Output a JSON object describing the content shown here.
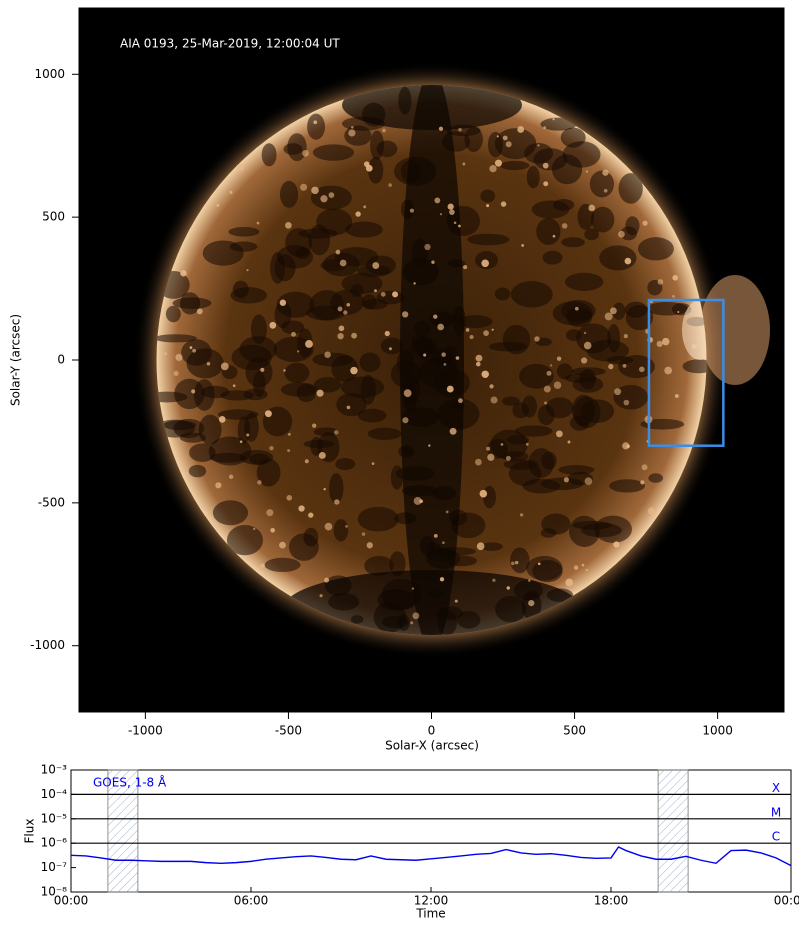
{
  "chart_data": [
    {
      "type": "image",
      "annotation": "AIA 0193, 25-Mar-2019, 12:00:04 UT",
      "xlabel": "Solar-X (arcsec)",
      "ylabel": "Solar-Y (arcsec)",
      "xlim": [
        -1232,
        1232
      ],
      "ylim": [
        -1232,
        1232
      ],
      "xticks": [
        -1000,
        -500,
        0,
        500,
        1000
      ],
      "yticks": [
        -1000,
        -500,
        0,
        500,
        1000
      ],
      "box": {
        "x": [
          760,
          1020
        ],
        "y": [
          -300,
          210
        ],
        "color": "#3a8ee6"
      }
    },
    {
      "type": "line",
      "xlabel": "Time",
      "ylabel": "Flux",
      "ylog": true,
      "xlim": [
        0,
        24
      ],
      "ylim": [
        1e-08,
        0.001
      ],
      "xticks": [
        {
          "value": 0,
          "label": "00:00"
        },
        {
          "value": 6,
          "label": "06:00"
        },
        {
          "value": 12,
          "label": "12:00"
        },
        {
          "value": 18,
          "label": "18:00"
        },
        {
          "value": 24,
          "label": "00:00"
        }
      ],
      "yticks": [
        {
          "value": 1e-08,
          "label": "10⁻⁸"
        },
        {
          "value": 1e-07,
          "label": "10⁻⁷"
        },
        {
          "value": 1e-06,
          "label": "10⁻⁶"
        },
        {
          "value": 1e-05,
          "label": "10⁻⁵"
        },
        {
          "value": 0.0001,
          "label": "10⁻⁴"
        },
        {
          "value": 0.001,
          "label": "10⁻³"
        }
      ],
      "flare_classes": [
        {
          "label": "X",
          "value": 0.0001
        },
        {
          "label": "M",
          "value": 1e-05
        },
        {
          "label": "C",
          "value": 1e-06
        }
      ],
      "shaded": [
        [
          1.23,
          2.23
        ],
        [
          19.57,
          20.57
        ]
      ],
      "x": [
        0,
        0.5,
        1,
        1.5,
        2,
        2.5,
        3,
        3.5,
        4,
        4.5,
        5,
        5.5,
        6,
        6.5,
        7,
        7.5,
        8,
        8.5,
        9,
        9.5,
        10,
        10.5,
        11,
        11.5,
        12,
        12.5,
        13,
        13.5,
        14,
        14.5,
        15,
        15.5,
        16,
        16.5,
        17,
        17.5,
        18,
        18.25,
        18.5,
        19,
        19.5,
        20,
        20.5,
        21,
        21.5,
        22,
        22.5,
        23,
        23.5,
        24
      ],
      "series": [
        {
          "name": "GOES, 1-8 Å",
          "color": "#0000ee",
          "values": [
            3.2e-07,
            3e-07,
            2.5e-07,
            2e-07,
            2e-07,
            1.9e-07,
            1.8e-07,
            1.8e-07,
            1.8e-07,
            1.6e-07,
            1.5e-07,
            1.6e-07,
            1.8e-07,
            2.2e-07,
            2.5e-07,
            2.8e-07,
            3e-07,
            2.6e-07,
            2.2e-07,
            2.1e-07,
            3e-07,
            2.2e-07,
            2.1e-07,
            2e-07,
            2.3e-07,
            2.6e-07,
            3e-07,
            3.5e-07,
            3.8e-07,
            5.5e-07,
            4e-07,
            3.5e-07,
            3.7e-07,
            3.2e-07,
            2.6e-07,
            2.4e-07,
            2.5e-07,
            7e-07,
            5e-07,
            3e-07,
            2.2e-07,
            2.2e-07,
            2.9e-07,
            2e-07,
            1.5e-07,
            5e-07,
            5.2e-07,
            4e-07,
            2.5e-07,
            1.2e-07
          ]
        }
      ]
    }
  ]
}
